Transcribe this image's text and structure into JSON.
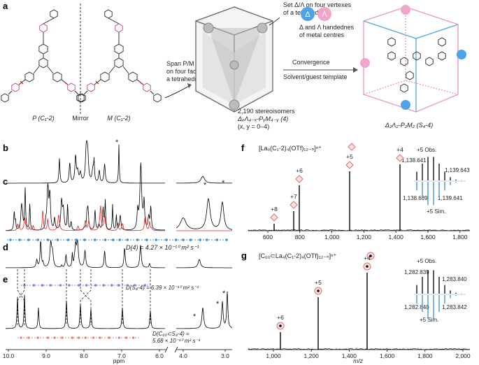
{
  "panel_a": {
    "label": "a",
    "left_caption": "P (C₁-2)",
    "mirror": "Mirror",
    "right_caption": "M (C₁-2)",
    "span": [
      "Span P/M (C₁-2)",
      "on four faces of",
      "a tetrahedron"
    ],
    "set_note": [
      "Set Δ/Λ on four vertexes",
      "of a tetrahedron"
    ],
    "delta": "Δ",
    "lambda": "Λ",
    "handedness": [
      "Δ and Λ handednes",
      "of metal centres"
    ],
    "stereo": [
      "2,190 stereoisomers",
      "ΔₓΛ₄₋ₓ-PᵧM₄₋ᵧ (4)",
      "(x, y = 0–4)"
    ],
    "convergence": "Convergence",
    "template": "Solvent/guest template",
    "product": "Δ₂Λ₂-P₂M₂ (S₄-4)"
  },
  "nmr": {
    "labels": [
      "b",
      "c",
      "d",
      "e"
    ],
    "star": "*",
    "d_c": "D(4) = 4.27 × 10⁻¹⁰ m² s⁻¹",
    "d_d": "D(S₄-4) = 6.39 × 10⁻¹⁰ m² s⁻¹",
    "d_e": [
      "D(C₆₀⊂S₄-4) =",
      "5.68 × 10⁻¹⁰ m² s⁻¹"
    ],
    "xticks": [
      "10.0",
      "9.0",
      "8.0",
      "7.0",
      "6.0",
      "4.0",
      "3.0"
    ],
    "xlabel": "ppm"
  },
  "ms_f": {
    "label": "f",
    "formula": "[La₄(C₁-2)₄(OTf)₁₂₋ₙ]ⁿ⁺",
    "peaks": [
      "+8",
      "+7",
      "+6",
      "+5",
      "+4"
    ],
    "obs": "+5 Obs.",
    "sim": "+5 Sim.",
    "masses": [
      "1,138.641",
      "1,139.643",
      "1,138.639",
      "1,139.641"
    ],
    "xticks": [
      "600",
      "800",
      "1,000",
      "1,200",
      "1,400",
      "1,600",
      "1,800"
    ]
  },
  "ms_g": {
    "label": "g",
    "formula": "[C₆₀⊂La₄(C₁-2)₄(OTf)₁₂₋ₙ]ⁿ⁺",
    "peaks": [
      "+6",
      "+5",
      "+4"
    ],
    "obs": "+5 Obs.",
    "sim": "+5 Sim.",
    "masses": [
      "1,282.839",
      "1,283.840",
      "1,282.840",
      "1,283.842"
    ],
    "xticks": [
      "1,000",
      "1,200",
      "1,400",
      "1,600",
      "1,800",
      "2,000"
    ],
    "xlabel": "m/z"
  }
}
